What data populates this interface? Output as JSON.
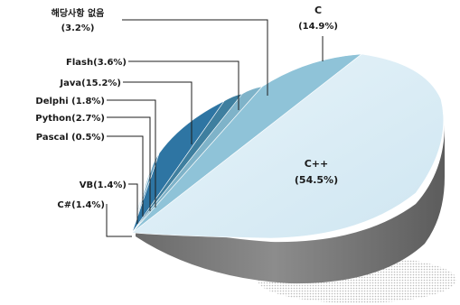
{
  "chart_data": {
    "type": "pie",
    "title": "",
    "slices": [
      {
        "label": "C++",
        "value_label": "(54.5%)",
        "value": 54.5,
        "color": "#d9ecf5"
      },
      {
        "label": "C",
        "value_label": "(14.9%)",
        "value": 14.9,
        "color": "#8fc3d8"
      },
      {
        "label": "해당사항 없음",
        "value_label": "(3.2%)",
        "value": 3.2,
        "color": "#7fb3c9"
      },
      {
        "label": "Flash",
        "value_label": "(3.6%)",
        "value": 3.6,
        "color": "#3f7f9f"
      },
      {
        "label": "Java",
        "value_label": "(15.2%)",
        "value": 15.2,
        "color": "#2e75a3"
      },
      {
        "label": "Delphi",
        "value_label": "(1.8%)",
        "value": 1.8,
        "color": "#5a9bbf"
      },
      {
        "label": "Python",
        "value_label": "(2.7%)",
        "value": 2.7,
        "color": "#9ec9de"
      },
      {
        "label": "Pascal",
        "value_label": "(0.5%)",
        "value": 0.5,
        "color": "#1f5d85"
      },
      {
        "label": "VB",
        "value_label": "(1.4%)",
        "value": 1.4,
        "color": "#c5e1ee"
      },
      {
        "label": "C#",
        "value_label": "(1.4%)",
        "value": 1.4,
        "color": "#4a9ad0"
      }
    ],
    "printed_labels": {
      "cpp": "C++",
      "cpp_pct": "(54.5%)",
      "c": "C",
      "c_pct": "(14.9%)",
      "none": "해당사항 없음",
      "none_pct": "(3.2%)",
      "flash": "Flash(3.6%)",
      "java": "Java(15.2%)",
      "delphi": "Delphi (1.8%)",
      "python": "Python(2.7%)",
      "pascal": "Pascal (0.5%)",
      "vb": "VB(1.4%)",
      "csharp": "C#(1.4%)"
    },
    "legend": "none",
    "grid": false
  }
}
